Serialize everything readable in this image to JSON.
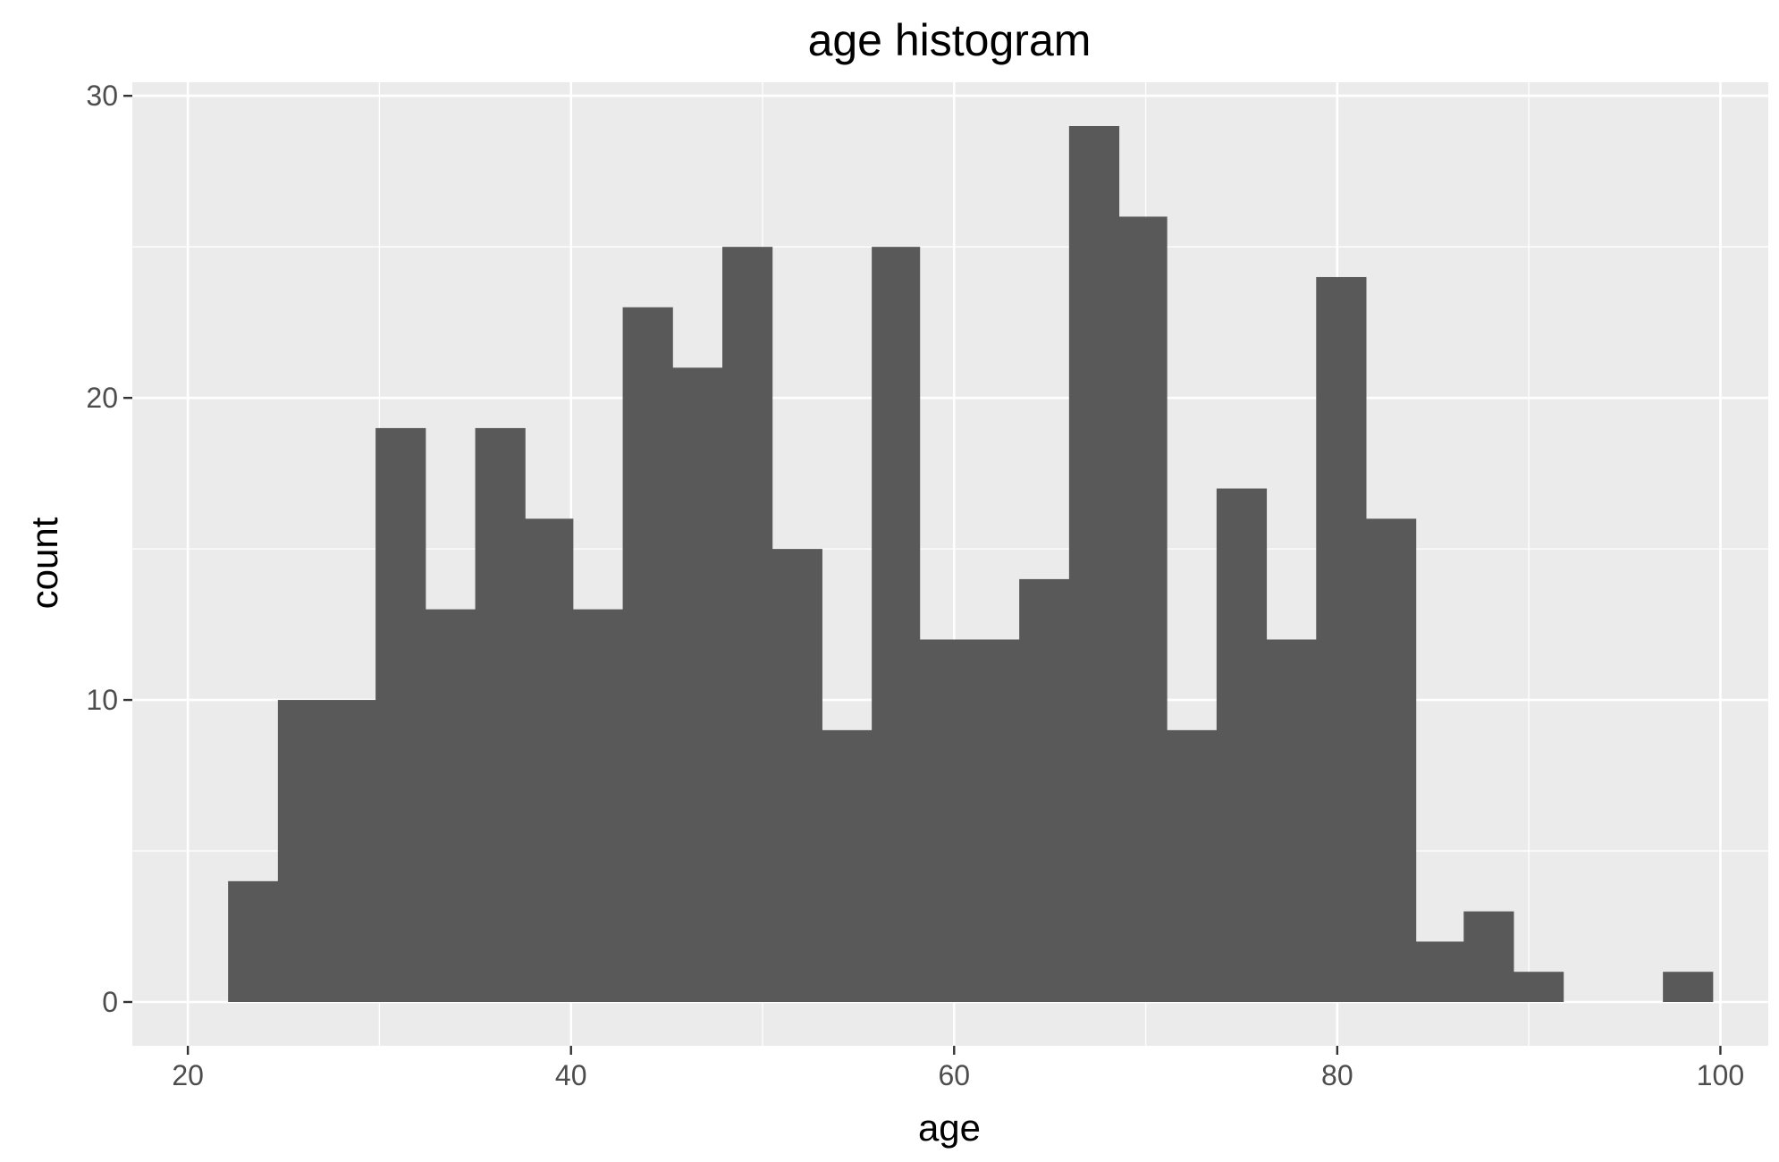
{
  "chart_data": {
    "type": "bar",
    "title": "age histogram",
    "xlabel": "age",
    "ylabel": "count",
    "xlim": [
      17.1,
      102.5
    ],
    "ylim": [
      -1.45,
      30.45
    ],
    "x_ticks": [
      20,
      40,
      60,
      80,
      100
    ],
    "y_ticks": [
      0,
      10,
      20,
      30
    ],
    "grid": true,
    "colors": {
      "panel": "#ebebeb",
      "grid": "#ffffff",
      "bar": "#595959",
      "tick": "#333333",
      "tick_label": "#4d4d4d"
    },
    "bins": [
      {
        "x0": 22.1,
        "x1": 24.7,
        "count": 4
      },
      {
        "x0": 24.7,
        "x1": 27.3,
        "count": 10
      },
      {
        "x0": 27.3,
        "x1": 29.8,
        "count": 10
      },
      {
        "x0": 29.8,
        "x1": 32.4,
        "count": 19
      },
      {
        "x0": 32.4,
        "x1": 35.0,
        "count": 13
      },
      {
        "x0": 35.0,
        "x1": 37.6,
        "count": 19
      },
      {
        "x0": 37.6,
        "x1": 40.1,
        "count": 16
      },
      {
        "x0": 40.1,
        "x1": 42.7,
        "count": 13
      },
      {
        "x0": 42.7,
        "x1": 45.3,
        "count": 23
      },
      {
        "x0": 45.3,
        "x1": 47.9,
        "count": 21
      },
      {
        "x0": 47.9,
        "x1": 50.5,
        "count": 25
      },
      {
        "x0": 50.5,
        "x1": 53.1,
        "count": 15
      },
      {
        "x0": 53.1,
        "x1": 55.7,
        "count": 9
      },
      {
        "x0": 55.7,
        "x1": 58.2,
        "count": 25
      },
      {
        "x0": 58.2,
        "x1": 60.8,
        "count": 12
      },
      {
        "x0": 60.8,
        "x1": 63.4,
        "count": 12
      },
      {
        "x0": 63.4,
        "x1": 66.0,
        "count": 14
      },
      {
        "x0": 66.0,
        "x1": 68.6,
        "count": 29
      },
      {
        "x0": 68.6,
        "x1": 71.1,
        "count": 26
      },
      {
        "x0": 71.1,
        "x1": 73.7,
        "count": 9
      },
      {
        "x0": 73.7,
        "x1": 76.3,
        "count": 17
      },
      {
        "x0": 76.3,
        "x1": 78.9,
        "count": 12
      },
      {
        "x0": 78.9,
        "x1": 81.5,
        "count": 24
      },
      {
        "x0": 81.5,
        "x1": 84.1,
        "count": 16
      },
      {
        "x0": 84.1,
        "x1": 86.6,
        "count": 2
      },
      {
        "x0": 86.6,
        "x1": 89.2,
        "count": 3
      },
      {
        "x0": 89.2,
        "x1": 91.8,
        "count": 1
      },
      {
        "x0": 97.0,
        "x1": 99.6,
        "count": 1
      }
    ]
  }
}
